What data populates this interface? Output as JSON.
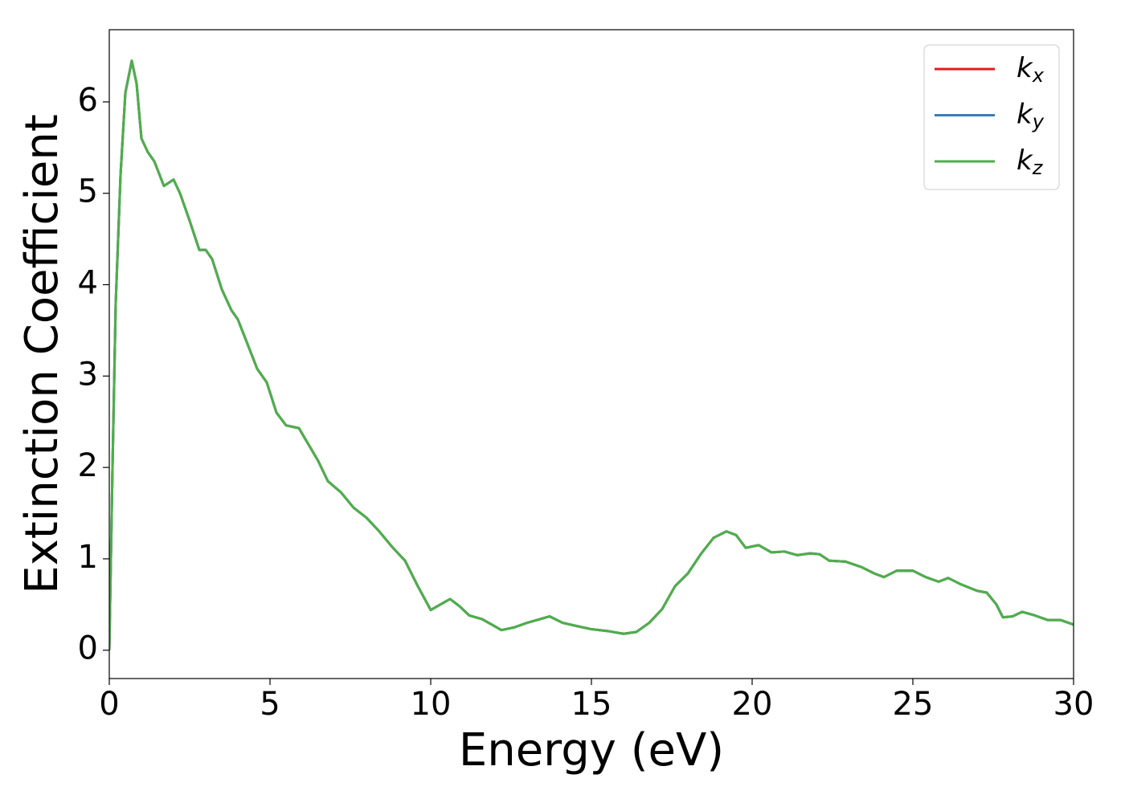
{
  "chart_data": {
    "type": "line",
    "xlabel": "Energy (eV)",
    "ylabel": "Extinction Coefficient",
    "x": [
      0,
      0.1,
      0.2,
      0.35,
      0.5,
      0.7,
      0.85,
      1.0,
      1.2,
      1.4,
      1.7,
      2.0,
      2.2,
      2.5,
      2.8,
      3.0,
      3.2,
      3.5,
      3.8,
      4.0,
      4.3,
      4.6,
      4.9,
      5.2,
      5.5,
      5.9,
      6.2,
      6.5,
      6.8,
      7.2,
      7.6,
      8.0,
      8.4,
      8.8,
      9.2,
      9.6,
      10.0,
      10.3,
      10.6,
      10.9,
      11.2,
      11.6,
      11.9,
      12.2,
      12.6,
      13.0,
      13.4,
      13.7,
      14.1,
      14.6,
      15.0,
      15.5,
      16.0,
      16.4,
      16.8,
      17.2,
      17.6,
      18.0,
      18.4,
      18.8,
      19.2,
      19.5,
      19.8,
      20.2,
      20.6,
      21.0,
      21.4,
      21.8,
      22.1,
      22.4,
      22.9,
      23.4,
      23.8,
      24.1,
      24.5,
      25.0,
      25.4,
      25.8,
      26.1,
      26.5,
      27.0,
      27.3,
      27.6,
      27.8,
      28.1,
      28.4,
      28.8,
      29.2,
      29.6,
      30.0
    ],
    "series": [
      {
        "name": "kx",
        "color": "#e41a1c",
        "values": [
          0,
          2.0,
          3.8,
          5.2,
          6.1,
          6.45,
          6.2,
          5.6,
          5.45,
          5.35,
          5.08,
          5.15,
          5.0,
          4.7,
          4.38,
          4.38,
          4.28,
          3.95,
          3.72,
          3.62,
          3.35,
          3.08,
          2.93,
          2.6,
          2.46,
          2.43,
          2.25,
          2.07,
          1.85,
          1.73,
          1.56,
          1.45,
          1.3,
          1.13,
          0.98,
          0.7,
          0.44,
          0.5,
          0.56,
          0.48,
          0.38,
          0.34,
          0.28,
          0.22,
          0.25,
          0.3,
          0.34,
          0.37,
          0.3,
          0.26,
          0.23,
          0.21,
          0.18,
          0.2,
          0.3,
          0.45,
          0.7,
          0.84,
          1.05,
          1.23,
          1.3,
          1.26,
          1.12,
          1.15,
          1.07,
          1.08,
          1.04,
          1.06,
          1.05,
          0.98,
          0.97,
          0.91,
          0.84,
          0.8,
          0.87,
          0.87,
          0.8,
          0.75,
          0.79,
          0.72,
          0.65,
          0.63,
          0.5,
          0.36,
          0.37,
          0.42,
          0.38,
          0.33,
          0.33,
          0.28
        ]
      },
      {
        "name": "ky",
        "color": "#377eb8",
        "values": [
          0,
          2.0,
          3.8,
          5.2,
          6.1,
          6.45,
          6.2,
          5.6,
          5.45,
          5.35,
          5.08,
          5.15,
          5.0,
          4.7,
          4.38,
          4.38,
          4.28,
          3.95,
          3.72,
          3.62,
          3.35,
          3.08,
          2.93,
          2.6,
          2.46,
          2.43,
          2.25,
          2.07,
          1.85,
          1.73,
          1.56,
          1.45,
          1.3,
          1.13,
          0.98,
          0.7,
          0.44,
          0.5,
          0.56,
          0.48,
          0.38,
          0.34,
          0.28,
          0.22,
          0.25,
          0.3,
          0.34,
          0.37,
          0.3,
          0.26,
          0.23,
          0.21,
          0.18,
          0.2,
          0.3,
          0.45,
          0.7,
          0.84,
          1.05,
          1.23,
          1.3,
          1.26,
          1.12,
          1.15,
          1.07,
          1.08,
          1.04,
          1.06,
          1.05,
          0.98,
          0.97,
          0.91,
          0.84,
          0.8,
          0.87,
          0.87,
          0.8,
          0.75,
          0.79,
          0.72,
          0.65,
          0.63,
          0.5,
          0.36,
          0.37,
          0.42,
          0.38,
          0.33,
          0.33,
          0.28
        ]
      },
      {
        "name": "kz",
        "color": "#4daf4a",
        "values": [
          0,
          2.0,
          3.8,
          5.2,
          6.1,
          6.45,
          6.2,
          5.6,
          5.45,
          5.35,
          5.08,
          5.15,
          5.0,
          4.7,
          4.38,
          4.38,
          4.28,
          3.95,
          3.72,
          3.62,
          3.35,
          3.08,
          2.93,
          2.6,
          2.46,
          2.43,
          2.25,
          2.07,
          1.85,
          1.73,
          1.56,
          1.45,
          1.3,
          1.13,
          0.98,
          0.7,
          0.44,
          0.5,
          0.56,
          0.48,
          0.38,
          0.34,
          0.28,
          0.22,
          0.25,
          0.3,
          0.34,
          0.37,
          0.3,
          0.26,
          0.23,
          0.21,
          0.18,
          0.2,
          0.3,
          0.45,
          0.7,
          0.84,
          1.05,
          1.23,
          1.3,
          1.26,
          1.12,
          1.15,
          1.07,
          1.08,
          1.04,
          1.06,
          1.05,
          0.98,
          0.97,
          0.91,
          0.84,
          0.8,
          0.87,
          0.87,
          0.8,
          0.75,
          0.79,
          0.72,
          0.65,
          0.63,
          0.5,
          0.36,
          0.37,
          0.42,
          0.38,
          0.33,
          0.33,
          0.28
        ]
      }
    ],
    "xlim": [
      0,
      30
    ],
    "xticks": [
      0,
      5,
      10,
      15,
      20,
      25,
      30
    ],
    "ylim": [
      -0.31,
      6.79
    ],
    "yticks": [
      0,
      1,
      2,
      3,
      4,
      5,
      6
    ],
    "grid": false,
    "legend": "upper right"
  }
}
